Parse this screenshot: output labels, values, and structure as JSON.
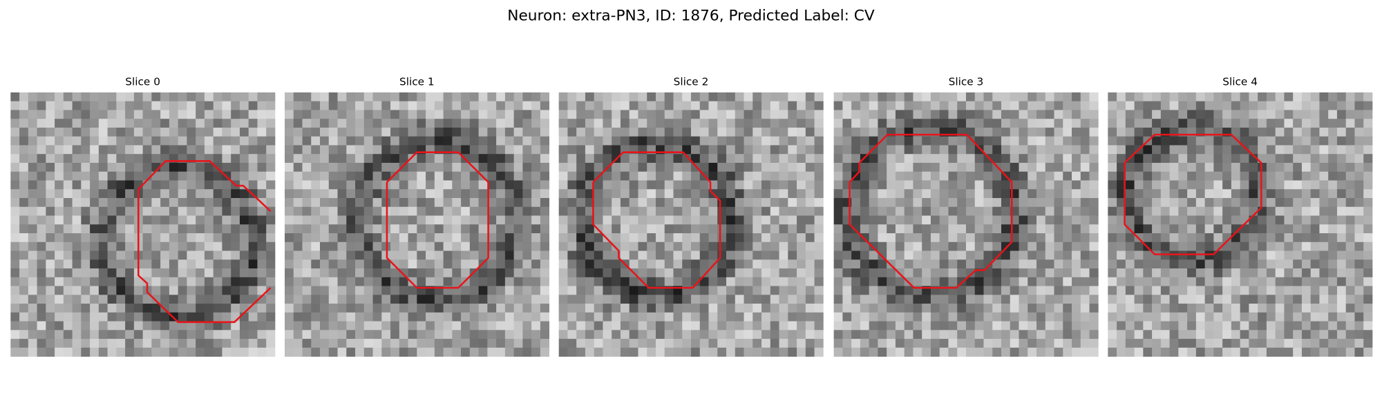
{
  "header": {
    "title": "Neuron: extra-PN3, ID: 1876, Predicted Label: CV"
  },
  "panels": [
    {
      "title": "Slice 0"
    },
    {
      "title": "Slice 1"
    },
    {
      "title": "Slice 2"
    },
    {
      "title": "Slice 3"
    },
    {
      "title": "Slice 4"
    }
  ]
}
